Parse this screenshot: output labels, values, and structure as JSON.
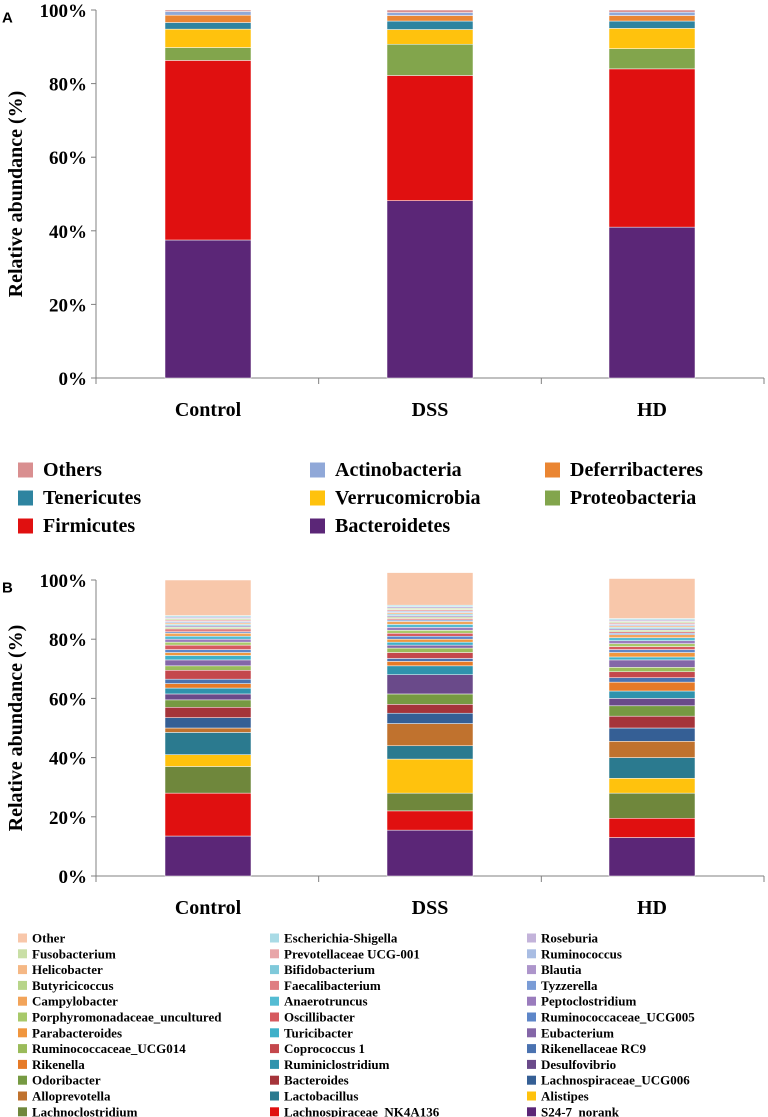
{
  "chart_data": [
    {
      "panel_label": "A",
      "type": "bar",
      "stacked": true,
      "ylabel": "Relative abundance (%)",
      "ylim": [
        0,
        100
      ],
      "yticks": [
        "0%",
        "20%",
        "40%",
        "60%",
        "80%",
        "100%"
      ],
      "categories": [
        "Control",
        "DSS",
        "HD"
      ],
      "series": [
        {
          "name": "Bacteroidetes",
          "color": "#5b2677",
          "values": [
            37.5,
            48.2,
            41.0
          ]
        },
        {
          "name": "Firmicutes",
          "color": "#e01010",
          "values": [
            48.8,
            34.0,
            43.0
          ]
        },
        {
          "name": "Proteobacteria",
          "color": "#82a54c",
          "values": [
            3.5,
            8.5,
            5.5
          ]
        },
        {
          "name": "Verrucomicrobia",
          "color": "#ffc20d",
          "values": [
            5.0,
            4.0,
            5.5
          ]
        },
        {
          "name": "Tenericutes",
          "color": "#2e84a0",
          "values": [
            1.8,
            2.3,
            2.0
          ]
        },
        {
          "name": "Deferribacteres",
          "color": "#ea8532",
          "values": [
            2.0,
            1.5,
            1.5
          ]
        },
        {
          "name": "Actinobacteria",
          "color": "#90a8d8",
          "values": [
            1.0,
            0.8,
            0.9
          ]
        },
        {
          "name": "Others",
          "color": "#d98f90",
          "values": [
            0.4,
            0.7,
            0.6
          ]
        }
      ],
      "legend": {
        "columns": 3,
        "order": [
          "Others",
          "Actinobacteria",
          "Deferribacteres",
          "Tenericutes",
          "Verrucomicrobia",
          "Proteobacteria",
          "Firmicutes",
          "Bacteroidetes"
        ]
      }
    },
    {
      "panel_label": "B",
      "type": "bar",
      "stacked": true,
      "ylabel": "Relative abundance (%)",
      "ylim": [
        0,
        100
      ],
      "yticks": [
        "0%",
        "20%",
        "40%",
        "60%",
        "80%",
        "100%"
      ],
      "categories": [
        "Control",
        "DSS",
        "HD"
      ],
      "series": [
        {
          "name": "S24-7_norank",
          "color": "#5b2677",
          "values": [
            13.5,
            15.5,
            13.0
          ]
        },
        {
          "name": "Lachnospiraceae_NK4A136",
          "color": "#e01010",
          "values": [
            14.5,
            6.5,
            6.5
          ]
        },
        {
          "name": "Lachnoclostridium",
          "color": "#6f873c",
          "values": [
            9.0,
            6.0,
            8.5
          ]
        },
        {
          "name": "Alistipes",
          "color": "#ffc20d",
          "values": [
            4.0,
            11.5,
            5.0
          ]
        },
        {
          "name": "Lactobacillus",
          "color": "#2b7a8f",
          "values": [
            7.5,
            4.5,
            7.0
          ]
        },
        {
          "name": "Alloprevotella",
          "color": "#c0722e",
          "values": [
            1.5,
            7.5,
            5.5
          ]
        },
        {
          "name": "Lachnospiraceae_UCG006",
          "color": "#355f95",
          "values": [
            3.5,
            3.5,
            4.5
          ]
        },
        {
          "name": "Bacteroides",
          "color": "#a5343a",
          "values": [
            3.5,
            3.0,
            4.0
          ]
        },
        {
          "name": "Odoribacter",
          "color": "#769a42",
          "values": [
            2.5,
            3.5,
            3.5
          ]
        },
        {
          "name": "Desulfovibrio",
          "color": "#6a4a8a",
          "values": [
            2.0,
            6.5,
            2.5
          ]
        },
        {
          "name": "Ruminiclostridium",
          "color": "#2f93ad",
          "values": [
            2.0,
            3.0,
            2.5
          ]
        },
        {
          "name": "Rikenella",
          "color": "#e67a27",
          "values": [
            1.5,
            1.5,
            3.0
          ]
        },
        {
          "name": "Rikenellaceae RC9",
          "color": "#4a72b0",
          "values": [
            1.5,
            1.0,
            1.5
          ]
        },
        {
          "name": "Coprococcus 1",
          "color": "#c4474c",
          "values": [
            3.0,
            2.0,
            2.0
          ]
        },
        {
          "name": "Ruminococcaceae_UCG014",
          "color": "#9abb5a",
          "values": [
            1.5,
            1.5,
            1.5
          ]
        },
        {
          "name": "Eubacterium",
          "color": "#8466a8",
          "values": [
            2.0,
            1.0,
            2.5
          ]
        },
        {
          "name": "Turicibacter",
          "color": "#3fb0c9",
          "values": [
            1.5,
            1.0,
            1.0
          ]
        },
        {
          "name": "Parabacteroides",
          "color": "#f0963e",
          "values": [
            1.0,
            1.0,
            1.5
          ]
        },
        {
          "name": "Ruminococcaceae_UCG005",
          "color": "#5d86c8",
          "values": [
            1.0,
            1.0,
            1.0
          ]
        },
        {
          "name": "Oscillibacter",
          "color": "#d65a5f",
          "values": [
            1.5,
            1.0,
            1.0
          ]
        },
        {
          "name": "Porphyromonadaceae_uncultured",
          "color": "#a8c96a",
          "values": [
            1.0,
            1.0,
            1.0
          ]
        },
        {
          "name": "Peptoclostridium",
          "color": "#9a7cbd",
          "values": [
            1.0,
            1.0,
            1.0
          ]
        },
        {
          "name": "Anaerotruncus",
          "color": "#54bcd3",
          "values": [
            1.0,
            1.0,
            1.0
          ]
        },
        {
          "name": "Campylobacter",
          "color": "#f2a45a",
          "values": [
            1.0,
            1.0,
            1.0
          ]
        },
        {
          "name": "Tyzzerella",
          "color": "#7a9cd6",
          "values": [
            0.5,
            0.5,
            0.5
          ]
        },
        {
          "name": "Faecalibacterium",
          "color": "#df7e82",
          "values": [
            1.0,
            0.5,
            0.5
          ]
        },
        {
          "name": "Butyricicoccus",
          "color": "#b8d58a",
          "values": [
            0.5,
            0.5,
            0.5
          ]
        },
        {
          "name": "Blautia",
          "color": "#ad95cb",
          "values": [
            0.5,
            0.5,
            0.5
          ]
        },
        {
          "name": "Bifidobacterium",
          "color": "#7fc9da",
          "values": [
            0.5,
            0.5,
            0.5
          ]
        },
        {
          "name": "Helicobacter",
          "color": "#f5b885",
          "values": [
            0.5,
            0.5,
            0.5
          ]
        },
        {
          "name": "Ruminococcus",
          "color": "#a9bde3",
          "values": [
            0.5,
            0.5,
            0.5
          ]
        },
        {
          "name": "Prevotellaceae UCG-001",
          "color": "#e8a6a8",
          "values": [
            0.5,
            0.5,
            0.5
          ]
        },
        {
          "name": "Fusobacterium",
          "color": "#c9dfa6",
          "values": [
            0.5,
            0.5,
            0.5
          ]
        },
        {
          "name": "Roseburia",
          "color": "#c3b3da",
          "values": [
            0.5,
            0.5,
            0.5
          ]
        },
        {
          "name": "Escherichia-Shigella",
          "color": "#a9dbe6",
          "values": [
            0.5,
            0.5,
            0.5
          ]
        },
        {
          "name": "Other",
          "color": "#f8c7aa",
          "values": [
            12.0,
            11.0,
            13.5
          ]
        }
      ],
      "legend": {
        "columns": 3,
        "order": [
          "Other",
          "Escherichia-Shigella",
          "Roseburia",
          "Fusobacterium",
          "Prevotellaceae UCG-001",
          "Ruminococcus",
          "Helicobacter",
          "Bifidobacterium",
          "Blautia",
          "Butyricicoccus",
          "Faecalibacterium",
          "Tyzzerella",
          "Campylobacter",
          "Anaerotruncus",
          "Peptoclostridium",
          "Porphyromonadaceae_uncultured",
          "Oscillibacter",
          "Ruminococcaceae_UCG005",
          "Parabacteroides",
          "Turicibacter",
          "Eubacterium",
          "Ruminococcaceae_UCG014",
          "Coprococcus 1",
          "Rikenellaceae RC9",
          "Rikenella",
          "Ruminiclostridium",
          "Desulfovibrio",
          "Odoribacter",
          "Bacteroides",
          "Lachnospiraceae_UCG006",
          "Alloprevotella",
          "Lactobacillus",
          "Alistipes",
          "Lachnoclostridium",
          "Lachnospiraceae_NK4A136",
          "S24-7_norank"
        ]
      }
    }
  ]
}
